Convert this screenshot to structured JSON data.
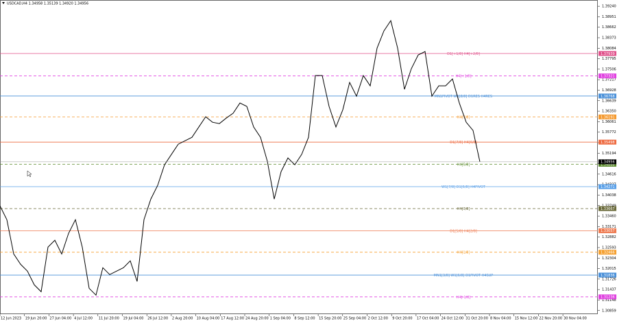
{
  "chart_data": {
    "type": "line",
    "title": "USDCAD,H4 1.34958 1.35139 1.34920 1.34956",
    "series": [
      {
        "name": "USDCAD",
        "color": "#000000",
        "values": [
          1.33741,
          1.33362,
          1.32417,
          1.32134,
          1.31945,
          1.31567,
          1.31378,
          1.32606,
          1.32795,
          1.32417,
          1.32984,
          1.33362,
          1.32606,
          1.31472,
          1.31283,
          1.32039,
          1.3185,
          1.31945,
          1.32039,
          1.32228,
          1.31661,
          1.33362,
          1.33929,
          1.34307,
          1.34874,
          1.35158,
          1.35441,
          1.35536,
          1.3563,
          1.35914,
          1.36197,
          1.36046,
          1.36008,
          1.36159,
          1.36292,
          1.36575,
          1.36481,
          1.35914,
          1.3563,
          1.34969,
          1.33929,
          1.34685,
          1.35063,
          1.34874,
          1.35158,
          1.3563,
          1.37331,
          1.37331,
          1.36481,
          1.35914,
          1.36386,
          1.37142,
          1.36764,
          1.37331,
          1.37048,
          1.38087,
          1.3856,
          1.38843,
          1.38087,
          1.36953,
          1.3752,
          1.37898,
          1.37993,
          1.36764,
          1.37048,
          1.37048,
          1.37237,
          1.36575,
          1.36046,
          1.35819,
          1.34956
        ]
      }
    ],
    "current_price": 1.34956,
    "xlim": [
      0,
      87.2
    ],
    "xticks": [
      {
        "value": 0,
        "label": "12 Jun 2023"
      },
      {
        "value": 3.57,
        "label": "19 Jun 20:00"
      },
      {
        "value": 7.14,
        "label": "27 Jun 04:00"
      },
      {
        "value": 10.71,
        "label": "4 Jul 12:00"
      },
      {
        "value": 14.28,
        "label": "11 Jul 20:00"
      },
      {
        "value": 17.85,
        "label": "19 Jul 04:00"
      },
      {
        "value": 21.42,
        "label": "26 Jul 12:00"
      },
      {
        "value": 24.99,
        "label": "2 Aug 20:00"
      },
      {
        "value": 28.56,
        "label": "10 Aug 04:00"
      },
      {
        "value": 32.13,
        "label": "17 Aug 12:00"
      },
      {
        "value": 35.7,
        "label": "24 Aug 20:00"
      },
      {
        "value": 39.27,
        "label": "1 Sep 04:00"
      },
      {
        "value": 42.84,
        "label": "8 Sep 12:00"
      },
      {
        "value": 46.41,
        "label": "15 Sep 20:00"
      },
      {
        "value": 49.98,
        "label": "25 Sep 04:00"
      },
      {
        "value": 53.55,
        "label": "2 Oct 12:00"
      },
      {
        "value": 57.12,
        "label": "9 Oct 20:00"
      },
      {
        "value": 60.69,
        "label": "17 Oct 04:00"
      },
      {
        "value": 64.26,
        "label": "24 Oct 12:00"
      },
      {
        "value": 67.83,
        "label": "31 Oct 20:00"
      },
      {
        "value": 71.4,
        "label": "8 Nov 04:00"
      },
      {
        "value": 74.97,
        "label": "15 Nov 12:00"
      },
      {
        "value": 78.54,
        "label": "22 Nov 20:00"
      },
      {
        "value": 82.11,
        "label": "30 Nov 04:00"
      }
    ],
    "ylim": [
      1.3076,
      1.39412
    ],
    "yticks": [
      {
        "value": 1.3924,
        "label": "1.39240"
      },
      {
        "value": 1.38951,
        "label": "1.38951"
      },
      {
        "value": 1.38662,
        "label": "1.38662"
      },
      {
        "value": 1.38373,
        "label": "1.38373"
      },
      {
        "value": 1.38084,
        "label": "1.38084"
      },
      {
        "value": 1.37795,
        "label": "1.37795"
      },
      {
        "value": 1.37506,
        "label": "1.37506"
      },
      {
        "value": 1.37217,
        "label": "1.37217"
      },
      {
        "value": 1.36928,
        "label": "1.36928"
      },
      {
        "value": 1.36639,
        "label": "1.36639"
      },
      {
        "value": 1.3635,
        "label": "1.36350"
      },
      {
        "value": 1.36061,
        "label": "1.36061"
      },
      {
        "value": 1.35772,
        "label": "1.35772"
      },
      {
        "value": 1.35483,
        "label": "1.35483"
      },
      {
        "value": 1.35194,
        "label": "1.35194"
      },
      {
        "value": 1.34905,
        "label": "1.34905"
      },
      {
        "value": 1.34616,
        "label": "1.34616"
      },
      {
        "value": 1.34327,
        "label": "1.34327"
      },
      {
        "value": 1.34038,
        "label": "1.34038"
      },
      {
        "value": 1.33749,
        "label": "1.33749"
      },
      {
        "value": 1.3346,
        "label": "1.33460"
      },
      {
        "value": 1.33171,
        "label": "1.33171"
      },
      {
        "value": 1.32882,
        "label": "1.32882"
      },
      {
        "value": 1.32593,
        "label": "1.32593"
      },
      {
        "value": 1.32304,
        "label": "1.32304"
      },
      {
        "value": 1.32015,
        "label": "1.32015"
      },
      {
        "value": 1.31726,
        "label": "1.31726"
      },
      {
        "value": 1.31437,
        "label": "1.31437"
      },
      {
        "value": 1.31148,
        "label": "1.31148"
      },
      {
        "value": 1.30859,
        "label": "1.30859"
      }
    ],
    "grid": false,
    "levels": [
      {
        "label": "D1[+1/8] H4[+2/8]",
        "value": 1.37939,
        "color": "#e0508a",
        "dashed": false
      },
      {
        "label": "H4[+1/8]",
        "value": 1.37321,
        "color": "#e040e0",
        "dashed": true
      },
      {
        "label": "MN1PIVOT W1[8/8] D1RES H4RES",
        "value": 1.36768,
        "color": "#4a90d9",
        "dashed": false
      },
      {
        "label": "H4[7/8]",
        "value": 1.36191,
        "color": "#f59a30",
        "dashed": true
      },
      {
        "label": "D1[7/8] H4[6/8]",
        "value": 1.35498,
        "color": "#ee6a40",
        "dashed": false
      },
      {
        "label": "H4[5/8]",
        "value": 1.34888,
        "color": "#5a8a2a",
        "dashed": true
      },
      {
        "label": "W1[7/8] D1[6/8] H4PIVOT",
        "value": 1.34271,
        "color": "#5aa0e8",
        "dashed": false
      },
      {
        "label": "H4[3/8]",
        "value": 1.33667,
        "color": "#6b6b3b",
        "dashed": true
      },
      {
        "label": "D1[5/8] H4[2/8]",
        "value": 1.33057,
        "color": "#ee7a50",
        "dashed": false
      },
      {
        "label": "H4[1/8]",
        "value": 1.32466,
        "color": "#f5a030",
        "dashed": true
      },
      {
        "label": "MN1[3/8] W1[6/8] D1PIVOT H4SUP",
        "value": 1.31836,
        "color": "#4a90d9",
        "dashed": false
      },
      {
        "label": "H4[-1/8]",
        "value": 1.31236,
        "color": "#e040e0",
        "dashed": true
      }
    ]
  }
}
